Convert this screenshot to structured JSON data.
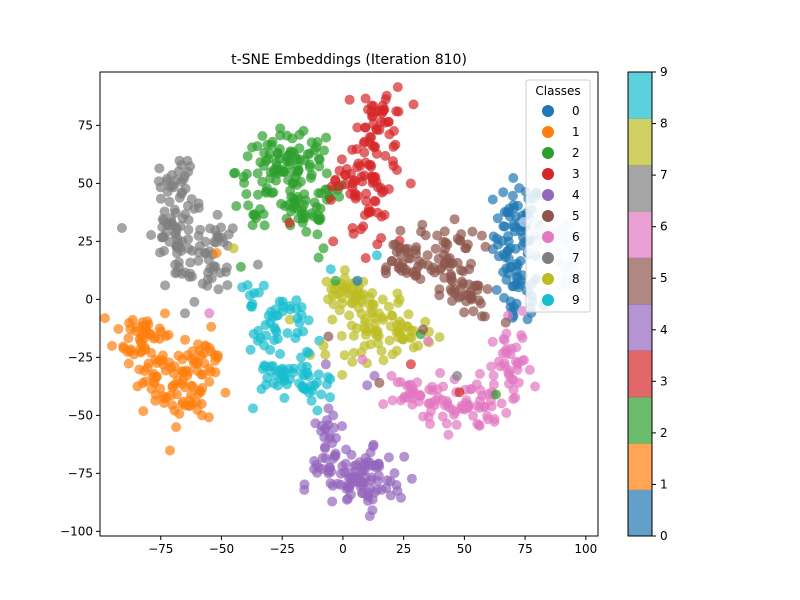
{
  "chart_data": {
    "type": "scatter",
    "title": "t-SNE Embeddings (Iteration 810)",
    "xlabel": "",
    "ylabel": "",
    "xlim": [
      -100,
      105
    ],
    "ylim": [
      -102,
      98
    ],
    "xticks": [
      -75,
      -50,
      -25,
      0,
      25,
      50,
      75,
      100
    ],
    "yticks": [
      -100,
      -75,
      -50,
      -25,
      0,
      25,
      50,
      75
    ],
    "grid": false,
    "point_alpha": 0.7,
    "legend": {
      "title": "Classes",
      "placement": "top-right",
      "labels": [
        "0",
        "1",
        "2",
        "3",
        "4",
        "5",
        "6",
        "7",
        "8",
        "9"
      ]
    },
    "colorbar": {
      "range": [
        0,
        9
      ],
      "ticks": [
        0,
        1,
        2,
        3,
        4,
        5,
        6,
        7,
        8,
        9
      ],
      "placement": "right"
    },
    "series": [
      {
        "name": "0",
        "color": "#1f77b4",
        "clusters": [
          {
            "center": [
              72,
              28
            ],
            "spread": [
              5,
              12
            ],
            "count": 70
          },
          {
            "center": [
              72,
              2
            ],
            "spread": [
              5,
              8
            ],
            "count": 30
          },
          {
            "center": [
              86,
              28
            ],
            "spread": [
              5,
              5
            ],
            "count": 25,
            "color": "#c6dbef"
          },
          {
            "center": [
              90,
              12
            ],
            "spread": [
              4,
              4
            ],
            "count": 15,
            "color": "#c6dbef"
          }
        ]
      },
      {
        "name": "1",
        "color": "#ff7f0e",
        "clusters": [
          {
            "center": [
              -82,
              -15
            ],
            "spread": [
              6,
              6
            ],
            "count": 45
          },
          {
            "center": [
              -77,
              -32
            ],
            "spread": [
              5,
              7
            ],
            "count": 30
          },
          {
            "center": [
              -65,
              -38
            ],
            "spread": [
              6,
              8
            ],
            "count": 50
          },
          {
            "center": [
              -58,
              -25
            ],
            "spread": [
              4,
              6
            ],
            "count": 25
          }
        ]
      },
      {
        "name": "2",
        "color": "#2ca02c",
        "clusters": [
          {
            "center": [
              -28,
              55
            ],
            "spread": [
              8,
              8
            ],
            "count": 70
          },
          {
            "center": [
              -16,
              38
            ],
            "spread": [
              6,
              6
            ],
            "count": 40
          },
          {
            "center": [
              -14,
              62
            ],
            "spread": [
              5,
              5
            ],
            "count": 25
          },
          {
            "center": [
              -5,
              45
            ],
            "spread": [
              3,
              3
            ],
            "count": 8
          },
          {
            "center": [
              -35,
              34
            ],
            "spread": [
              3,
              2
            ],
            "count": 8
          }
        ]
      },
      {
        "name": "3",
        "color": "#d62728",
        "clusters": [
          {
            "center": [
              17,
              80
            ],
            "spread": [
              5,
              6
            ],
            "count": 30
          },
          {
            "center": [
              13,
              62
            ],
            "spread": [
              6,
              8
            ],
            "count": 40
          },
          {
            "center": [
              9,
              42
            ],
            "spread": [
              6,
              10
            ],
            "count": 40
          },
          {
            "center": [
              -1,
              52
            ],
            "spread": [
              3,
              2
            ],
            "count": 8
          }
        ]
      },
      {
        "name": "4",
        "color": "#9467bd",
        "clusters": [
          {
            "center": [
              5,
              -80
            ],
            "spread": [
              10,
              6
            ],
            "count": 70
          },
          {
            "center": [
              -5,
              -62
            ],
            "spread": [
              4,
              8
            ],
            "count": 30
          },
          {
            "center": [
              13,
              -72
            ],
            "spread": [
              4,
              5
            ],
            "count": 20
          }
        ]
      },
      {
        "name": "5",
        "color": "#8c564b",
        "clusters": [
          {
            "center": [
              42,
              22
            ],
            "spread": [
              7,
              7
            ],
            "count": 45
          },
          {
            "center": [
              24,
              17
            ],
            "spread": [
              6,
              5
            ],
            "count": 30
          },
          {
            "center": [
              44,
              4
            ],
            "spread": [
              5,
              5
            ],
            "count": 25
          },
          {
            "center": [
              54,
              0
            ],
            "spread": [
              3,
              4
            ],
            "count": 15
          }
        ]
      },
      {
        "name": "6",
        "color": "#e377c2",
        "clusters": [
          {
            "center": [
              48,
              -45
            ],
            "spread": [
              10,
              6
            ],
            "count": 70
          },
          {
            "center": [
              70,
              -30
            ],
            "spread": [
              4,
              8
            ],
            "count": 35
          },
          {
            "center": [
              30,
              -40
            ],
            "spread": [
              6,
              4
            ],
            "count": 25
          }
        ]
      },
      {
        "name": "7",
        "color": "#7f7f7f",
        "clusters": [
          {
            "center": [
              -68,
              48
            ],
            "spread": [
              4,
              7
            ],
            "count": 35
          },
          {
            "center": [
              -70,
              28
            ],
            "spread": [
              7,
              7
            ],
            "count": 45
          },
          {
            "center": [
              -58,
              12
            ],
            "spread": [
              6,
              5
            ],
            "count": 30
          },
          {
            "center": [
              -50,
              25
            ],
            "spread": [
              4,
              4
            ],
            "count": 15
          }
        ]
      },
      {
        "name": "8",
        "color": "#bcbd22",
        "clusters": [
          {
            "center": [
              12,
              -10
            ],
            "spread": [
              9,
              8
            ],
            "count": 70
          },
          {
            "center": [
              2,
              3
            ],
            "spread": [
              5,
              4
            ],
            "count": 25
          },
          {
            "center": [
              26,
              -15
            ],
            "spread": [
              5,
              4
            ],
            "count": 20
          }
        ]
      },
      {
        "name": "9",
        "color": "#17becf",
        "clusters": [
          {
            "center": [
              -26,
              -12
            ],
            "spread": [
              6,
              8
            ],
            "count": 45
          },
          {
            "center": [
              -24,
              -33
            ],
            "spread": [
              8,
              4
            ],
            "count": 35
          },
          {
            "center": [
              -12,
              -38
            ],
            "spread": [
              4,
              4
            ],
            "count": 15
          },
          {
            "center": [
              -38,
              -2
            ],
            "spread": [
              3,
              3
            ],
            "count": 8
          }
        ]
      }
    ],
    "strays": [
      {
        "x": -47,
        "y": 28,
        "color": "#7f7f7f"
      },
      {
        "x": -52,
        "y": 20,
        "color": "#ff7f0e"
      },
      {
        "x": -8,
        "y": 22,
        "color": "#2ca02c"
      },
      {
        "x": -4,
        "y": 25,
        "color": "#d62728"
      },
      {
        "x": -10,
        "y": 18,
        "color": "#2ca02c"
      },
      {
        "x": -5,
        "y": 13,
        "color": "#17becf"
      },
      {
        "x": -3,
        "y": 8,
        "color": "#2ca02c"
      },
      {
        "x": 6,
        "y": 8,
        "color": "#1f77b4"
      },
      {
        "x": 14,
        "y": 19,
        "color": "#17becf"
      },
      {
        "x": 32,
        "y": -15,
        "color": "#2ca02c"
      },
      {
        "x": 33,
        "y": -13,
        "color": "#8c564b"
      },
      {
        "x": 35,
        "y": -18,
        "color": "#e377c2"
      },
      {
        "x": 31,
        "y": -20,
        "color": "#bcbd22"
      },
      {
        "x": -6,
        "y": -16,
        "color": "#8c564b"
      },
      {
        "x": -8,
        "y": -20,
        "color": "#bcbd22"
      },
      {
        "x": -7,
        "y": -28,
        "color": "#9467bd"
      },
      {
        "x": -6,
        "y": -47,
        "color": "#9467bd"
      },
      {
        "x": -4,
        "y": -50,
        "color": "#9467bd"
      },
      {
        "x": -37,
        "y": -47,
        "color": "#17becf"
      },
      {
        "x": -55,
        "y": -6,
        "color": "#e377c2"
      },
      {
        "x": -65,
        "y": -6,
        "color": "#7f7f7f"
      },
      {
        "x": -58,
        "y": -50,
        "color": "#ff7f0e"
      },
      {
        "x": 8,
        "y": -26,
        "color": "#e377c2"
      },
      {
        "x": 13,
        "y": -33,
        "color": "#9467bd"
      },
      {
        "x": 15,
        "y": -36,
        "color": "#8c564b"
      },
      {
        "x": 10,
        "y": -37,
        "color": "#9467bd"
      },
      {
        "x": 20,
        "y": -33,
        "color": "#e377c2"
      },
      {
        "x": 28,
        "y": -28,
        "color": "#d62728"
      },
      {
        "x": 68,
        "y": -7,
        "color": "#e377c2"
      },
      {
        "x": 67,
        "y": -10,
        "color": "#8c564b"
      },
      {
        "x": 74,
        "y": -5,
        "color": "#e377c2"
      },
      {
        "x": 48,
        "y": -40,
        "color": "#d62728"
      },
      {
        "x": 63,
        "y": -41,
        "color": "#2ca02c"
      },
      {
        "x": 47,
        "y": -33,
        "color": "#7f7f7f"
      },
      {
        "x": -42,
        "y": 14,
        "color": "#2ca02c"
      },
      {
        "x": -35,
        "y": 15,
        "color": "#7f7f7f"
      },
      {
        "x": -22,
        "y": 33,
        "color": "#d62728"
      },
      {
        "x": -45,
        "y": 22,
        "color": "#bcbd22"
      }
    ]
  }
}
